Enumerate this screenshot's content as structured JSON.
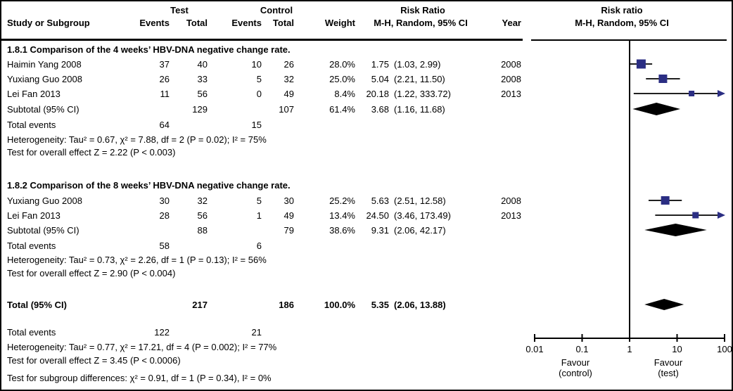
{
  "header": {
    "study": "Study or Subgroup",
    "test_group": "Test",
    "control_group": "Control",
    "events": "Events",
    "total": "Total",
    "weight": "Weight",
    "rr_line1": "Risk Ratio",
    "rr_line2": "M-H, Random, 95% CI",
    "year": "Year",
    "plot_line1": "Risk ratio",
    "plot_line2": "M-H, Random, 95% CI"
  },
  "sections": [
    {
      "heading": "1.8.1 Comparison of the 4 weeks’ HBV-DNA negative change rate.",
      "studies": [
        {
          "name": "Haimin Yang 2008",
          "t_events": "37",
          "t_total": "40",
          "c_events": "10",
          "c_total": "26",
          "weight": "28.0%",
          "rr": "1.75",
          "ci": "(1.03, 2.99)",
          "year": "2008",
          "est": 1.75,
          "lo": 1.03,
          "hi": 2.99,
          "weight_pct": 28.0
        },
        {
          "name": "Yuxiang Guo 2008",
          "t_events": "26",
          "t_total": "33",
          "c_events": "5",
          "c_total": "32",
          "weight": "25.0%",
          "rr": "5.04",
          "ci": "(2.21, 11.50)",
          "year": "2008",
          "est": 5.04,
          "lo": 2.21,
          "hi": 11.5,
          "weight_pct": 25.0
        },
        {
          "name": "Lei Fan 2013",
          "t_events": "11",
          "t_total": "56",
          "c_events": "0",
          "c_total": "49",
          "weight": "8.4%",
          "rr": "20.18",
          "ci": "(1.22, 333.72)",
          "year": "2013",
          "est": 20.18,
          "lo": 1.22,
          "hi": 333.72,
          "weight_pct": 8.4
        }
      ],
      "subtotal": {
        "label": "Subtotal (95% CI)",
        "t_total": "129",
        "c_total": "107",
        "weight": "61.4%",
        "rr": "3.68",
        "ci": "(1.16, 11.68)",
        "est": 3.68,
        "lo": 1.16,
        "hi": 11.68
      },
      "total_events": {
        "label": "Total events",
        "test": "64",
        "control": "15"
      },
      "heterogeneity": "Heterogeneity: Tau² = 0.67, χ² = 7.88, df = 2 (P = 0.02); I² = 75%",
      "overall": "Test for overall effect Z = 2.22 (P < 0.003)"
    },
    {
      "heading": "1.8.2 Comparison of the 8 weeks’ HBV-DNA negative change rate.",
      "studies": [
        {
          "name": "Yuxiang Guo 2008",
          "t_events": "30",
          "t_total": "32",
          "c_events": "5",
          "c_total": "30",
          "weight": "25.2%",
          "rr": "5.63",
          "ci": "(2.51, 12.58)",
          "year": "2008",
          "est": 5.63,
          "lo": 2.51,
          "hi": 12.58,
          "weight_pct": 25.2
        },
        {
          "name": "Lei Fan 2013",
          "t_events": "28",
          "t_total": "56",
          "c_events": "1",
          "c_total": "49",
          "weight": "13.4%",
          "rr": "24.50",
          "ci": "(3.46, 173.49)",
          "year": "2013",
          "est": 24.5,
          "lo": 3.46,
          "hi": 173.49,
          "weight_pct": 13.4
        }
      ],
      "subtotal": {
        "label": "Subtotal (95% CI)",
        "t_total": "88",
        "c_total": "79",
        "weight": "38.6%",
        "rr": "9.31",
        "ci": "(2.06, 42.17)",
        "est": 9.31,
        "lo": 2.06,
        "hi": 42.17
      },
      "total_events": {
        "label": "Total events",
        "test": "58",
        "control": "6"
      },
      "heterogeneity": "Heterogeneity: Tau² = 0.73, χ² = 2.26, df = 1 (P = 0.13); I² = 56%",
      "overall": "Test for overall effect Z = 2.90 (P < 0.004)"
    }
  ],
  "total": {
    "label": "Total (95% CI)",
    "t_total": "217",
    "c_total": "186",
    "weight": "100.0%",
    "rr": "5.35",
    "ci": "(2.06, 13.88)",
    "est": 5.35,
    "lo": 2.06,
    "hi": 13.88,
    "total_events": {
      "label": "Total events",
      "test": "122",
      "control": "21"
    },
    "heterogeneity": "Heterogeneity: Tau² = 0.77, χ² = 17.21, df = 4 (P = 0.002); I² = 77%",
    "overall": "Test for overall effect Z = 3.45 (P < 0.0006)",
    "subgroup_diff": "Test for subgroup differences: χ² = 0.91, df = 1 (P = 0.34), I² = 0%"
  },
  "axis": {
    "tick_labels": [
      "0.01",
      "0.1",
      "1",
      "10",
      "100"
    ],
    "favour_left_line1": "Favour",
    "favour_left_line2": "(control)",
    "favour_right_line1": "Favour",
    "favour_right_line2": "(test)"
  },
  "chart_data": {
    "type": "forest",
    "x_scale": "log",
    "xlim": [
      0.01,
      100
    ],
    "x_ticks": [
      0.01,
      0.1,
      1,
      10,
      100
    ],
    "x_tick_labels": [
      "0.01",
      "0.1",
      "1",
      "10",
      "100"
    ],
    "null_line": 1,
    "xlabel_left": "Favour (control)",
    "xlabel_right": "Favour (test)",
    "marker_color": "#2b2e83",
    "rows": [
      {
        "label": "Haimin Yang 2008",
        "group": "1.8.1",
        "kind": "study",
        "est": 1.75,
        "lo": 1.03,
        "hi": 2.99,
        "weight_pct": 28.0
      },
      {
        "label": "Yuxiang Guo 2008",
        "group": "1.8.1",
        "kind": "study",
        "est": 5.04,
        "lo": 2.21,
        "hi": 11.5,
        "weight_pct": 25.0
      },
      {
        "label": "Lei Fan 2013",
        "group": "1.8.1",
        "kind": "study",
        "est": 20.18,
        "lo": 1.22,
        "hi": 333.72,
        "weight_pct": 8.4
      },
      {
        "label": "Subtotal 1.8.1 (95% CI)",
        "group": "1.8.1",
        "kind": "diamond",
        "est": 3.68,
        "lo": 1.16,
        "hi": 11.68,
        "weight_pct": 61.4
      },
      {
        "label": "Yuxiang Guo 2008",
        "group": "1.8.2",
        "kind": "study",
        "est": 5.63,
        "lo": 2.51,
        "hi": 12.58,
        "weight_pct": 25.2
      },
      {
        "label": "Lei Fan 2013",
        "group": "1.8.2",
        "kind": "study",
        "est": 24.5,
        "lo": 3.46,
        "hi": 173.49,
        "weight_pct": 13.4
      },
      {
        "label": "Subtotal 1.8.2 (95% CI)",
        "group": "1.8.2",
        "kind": "diamond",
        "est": 9.31,
        "lo": 2.06,
        "hi": 42.17,
        "weight_pct": 38.6
      },
      {
        "label": "Total (95% CI)",
        "group": "all",
        "kind": "diamond",
        "est": 5.35,
        "lo": 2.06,
        "hi": 13.88,
        "weight_pct": 100.0
      }
    ]
  }
}
